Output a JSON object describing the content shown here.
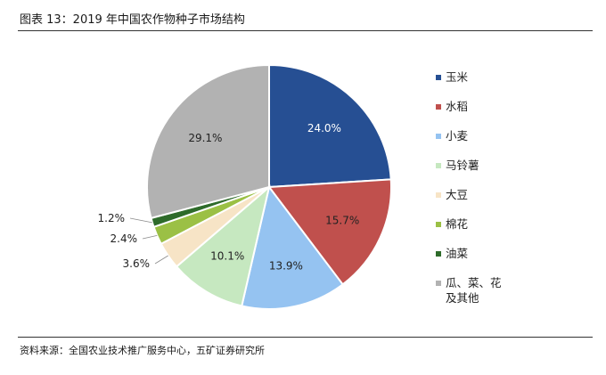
{
  "title": "图表 13：2019 年中国农作物种子市场结构",
  "source": "资料来源：全国农业技术推广服务中心，五矿证券研究所",
  "colors": {
    "corn": "#264f93",
    "rice": "#c0504d",
    "wheat": "#95c3f1",
    "potato": "#c6e8c0",
    "soybean": "#f7e4c6",
    "cotton": "#9bc045",
    "rapeseed": "#2e6b2a",
    "other": "#b2b2b2"
  },
  "chart_data": {
    "type": "pie",
    "title": "",
    "slices": [
      {
        "label": "玉米",
        "value": 24.0,
        "display": "24.0%",
        "color": "#264f93",
        "label_inside": true,
        "label_color": "#ffffff"
      },
      {
        "label": "水稻",
        "value": 15.7,
        "display": "15.7%",
        "color": "#c0504d",
        "label_inside": true,
        "label_color": "#222222"
      },
      {
        "label": "小麦",
        "value": 13.9,
        "display": "13.9%",
        "color": "#95c3f1",
        "label_inside": true,
        "label_color": "#222222"
      },
      {
        "label": "马铃薯",
        "value": 10.1,
        "display": "10.1%",
        "color": "#c6e8c0",
        "label_inside": true,
        "label_color": "#222222"
      },
      {
        "label": "大豆",
        "value": 3.6,
        "display": "3.6%",
        "color": "#f7e4c6",
        "label_inside": false,
        "label_color": "#222222"
      },
      {
        "label": "棉花",
        "value": 2.4,
        "display": "2.4%",
        "color": "#9bc045",
        "label_inside": false,
        "label_color": "#222222"
      },
      {
        "label": "油菜",
        "value": 1.2,
        "display": "1.2%",
        "color": "#2e6b2a",
        "label_inside": false,
        "label_color": "#222222"
      },
      {
        "label": "瓜、菜、花\n及其他",
        "value": 29.1,
        "display": "29.1%",
        "color": "#b2b2b2",
        "label_inside": true,
        "label_color": "#222222"
      }
    ],
    "start_angle_deg": 0,
    "direction": "clockwise",
    "legend_position": "right"
  }
}
